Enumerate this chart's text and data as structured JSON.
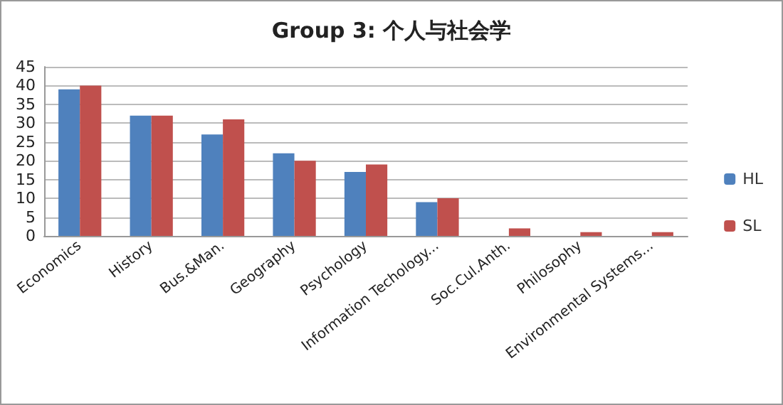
{
  "chart_data": {
    "type": "bar",
    "title": "Group 3: 个人与社会学",
    "categories": [
      "Economics",
      "History",
      "Bus.&Man.",
      "Geography",
      "Psychology",
      "Information Techology...",
      "Soc.Cul.Anth.",
      "Philosophy",
      "Environmental Systems..."
    ],
    "series": [
      {
        "name": "HL",
        "color": "#4f81bd",
        "values": [
          39,
          32,
          27,
          22,
          17,
          9,
          0,
          0,
          0
        ]
      },
      {
        "name": "SL",
        "color": "#c0504d",
        "values": [
          40,
          32,
          31,
          20,
          19,
          10,
          2,
          1,
          1
        ]
      }
    ],
    "ylim": [
      0,
      45
    ],
    "yticks": [
      0,
      5,
      10,
      15,
      20,
      25,
      30,
      35,
      40,
      45
    ],
    "grid": "y",
    "legend": "right"
  }
}
